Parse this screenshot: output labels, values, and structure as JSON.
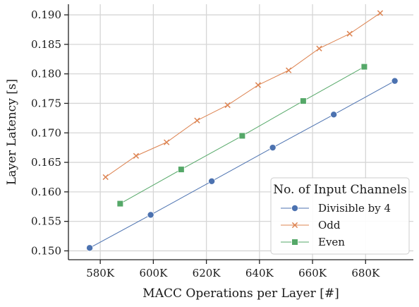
{
  "chart_data": {
    "type": "line",
    "title": "",
    "xlabel": "MACC Operations per Layer [#]",
    "ylabel": "Layer Latency [s]",
    "xlim": [
      568000,
      698000
    ],
    "ylim": [
      0.1485,
      0.1918
    ],
    "x_ticks": [
      580000,
      600000,
      620000,
      640000,
      660000,
      680000
    ],
    "x_tick_labels": [
      "580K",
      "600K",
      "620K",
      "640K",
      "660K",
      "680K"
    ],
    "y_ticks": [
      0.15,
      0.155,
      0.16,
      0.165,
      0.17,
      0.175,
      0.18,
      0.185,
      0.19
    ],
    "y_tick_labels": [
      "0.150",
      "0.155",
      "0.160",
      "0.165",
      "0.170",
      "0.175",
      "0.180",
      "0.185",
      "0.190"
    ],
    "grid": true,
    "legend": {
      "title": "No. of Input Channels",
      "position": "lower-right"
    },
    "series": [
      {
        "name": "Divisible by 4",
        "color": "#4c72b0",
        "marker": "circle",
        "x": [
          576000,
          599000,
          622000,
          645000,
          668000,
          691000
        ],
        "y": [
          0.1505,
          0.1561,
          0.1618,
          0.1675,
          0.1731,
          0.1788
        ]
      },
      {
        "name": "Odd",
        "color": "#dd8452",
        "marker": "x",
        "x": [
          582000,
          593500,
          605000,
          616500,
          628000,
          639500,
          651000,
          662500,
          674000,
          685500
        ],
        "y": [
          0.1625,
          0.1661,
          0.1684,
          0.1721,
          0.1747,
          0.1781,
          0.1806,
          0.1843,
          0.1868,
          0.1903
        ]
      },
      {
        "name": "Even",
        "color": "#55a868",
        "marker": "square",
        "x": [
          587500,
          610500,
          633500,
          656500,
          679500
        ],
        "y": [
          0.158,
          0.1638,
          0.1695,
          0.1754,
          0.1812
        ]
      }
    ]
  }
}
